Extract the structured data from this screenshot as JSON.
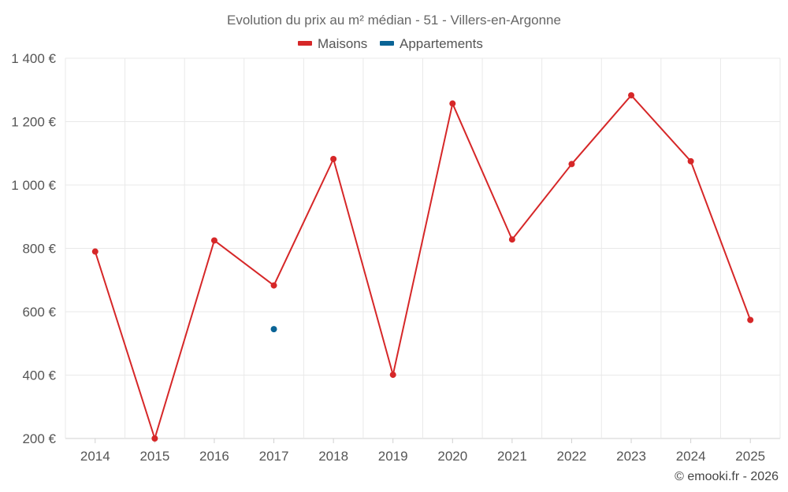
{
  "chart_data": {
    "type": "line",
    "title": "Evolution du prix au m² médian - 51 - Villers-en-Argonne",
    "categories": [
      "2014",
      "2015",
      "2016",
      "2017",
      "2018",
      "2019",
      "2020",
      "2021",
      "2022",
      "2023",
      "2024",
      "2025"
    ],
    "series": [
      {
        "name": "Maisons",
        "color": "#d62728",
        "values": [
          790,
          200,
          825,
          683,
          1082,
          401,
          1257,
          828,
          1066,
          1283,
          1075,
          574
        ]
      },
      {
        "name": "Appartements",
        "color": "#0a6496",
        "values": [
          null,
          null,
          null,
          545,
          null,
          null,
          null,
          null,
          null,
          null,
          null,
          null
        ]
      }
    ],
    "ylim": [
      200,
      1400
    ],
    "yticks": [
      200,
      400,
      600,
      800,
      1000,
      1200,
      1400
    ],
    "ytick_labels": [
      "200 €",
      "400 €",
      "600 €",
      "800 €",
      "1 000 €",
      "1 200 €",
      "1 400 €"
    ],
    "xlabel": "",
    "ylabel": "",
    "grid": true,
    "legend_position": "top-center"
  },
  "credit": "© emooki.fr - 2026"
}
